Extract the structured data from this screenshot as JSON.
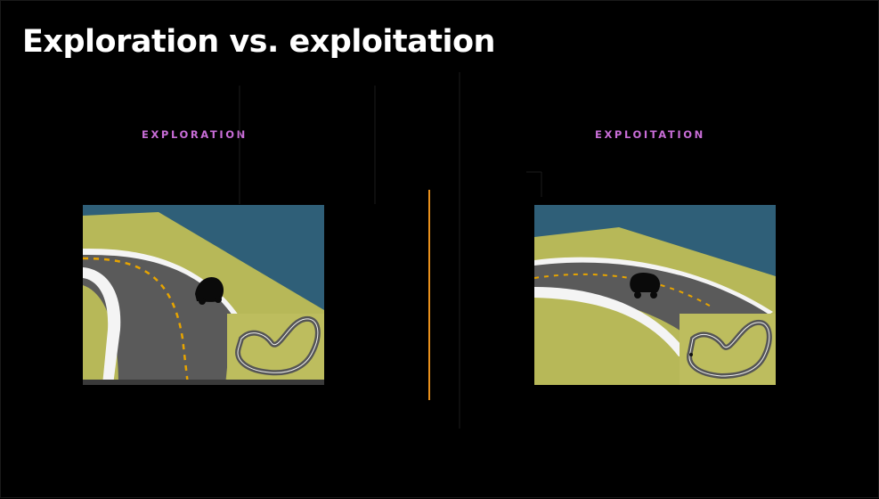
{
  "slide": {
    "title": "Exploration vs. exploitation",
    "left_label": "EXPLORATION",
    "right_label": "EXPLOITATION"
  },
  "colors": {
    "background": "#000000",
    "title": "#ffffff",
    "label_accent": "#c86dd7",
    "divider": "#e8901c",
    "water": "#2f5f78",
    "grass": "#b7b858",
    "track": "#595959",
    "track_edge": "#f4f4f4",
    "center_line": "#e7a400",
    "minimap_bg": "#bdbd5e"
  },
  "icons": {
    "left_car": "race-car-icon",
    "right_car": "race-car-icon",
    "left_minimap": "track-map-icon",
    "right_minimap": "track-map-icon"
  }
}
